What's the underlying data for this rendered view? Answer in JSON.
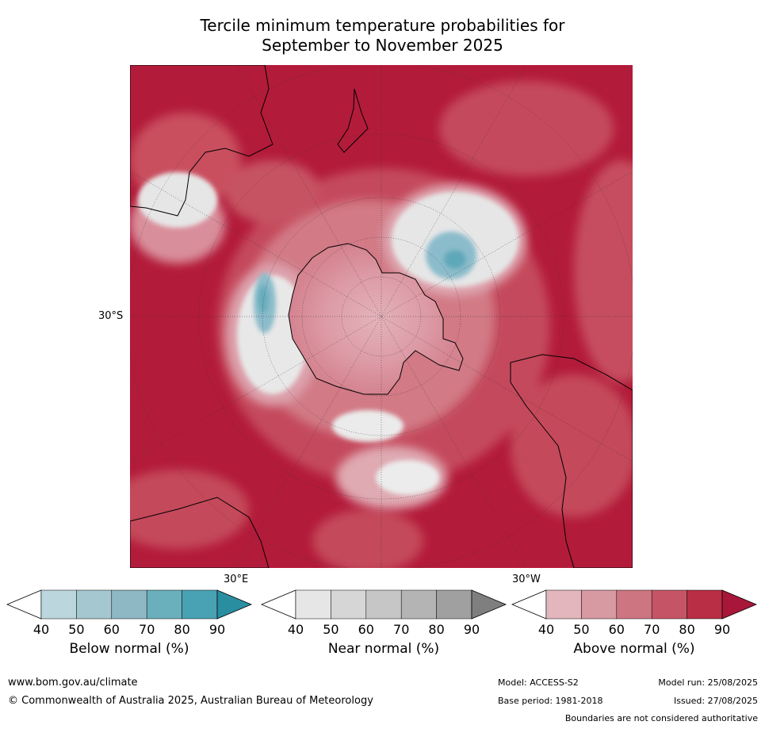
{
  "title": {
    "line1": "Tercile minimum temperature probabilities for",
    "line2": "September to November 2025"
  },
  "map": {
    "projection_labels": {
      "lat_30s": "30°S",
      "lon_30e": "30°E",
      "lon_30w": "30°W"
    },
    "colors": {
      "above_dominant": "#b31b3a",
      "above_mid": "#cf5e70",
      "above_low": "#e0a7b0",
      "near": "#e6e6e6",
      "below": "#7fb6c4",
      "coast": "#000000"
    }
  },
  "legends": [
    {
      "label": "Below normal (%)",
      "ticks": [
        "40",
        "50",
        "60",
        "70",
        "80",
        "90"
      ],
      "colors": [
        "#ffffff",
        "#bcd6de",
        "#a5c8d0",
        "#8db8c4",
        "#6aafbc",
        "#48a2b3",
        "#2a8ea1"
      ]
    },
    {
      "label": "Near normal (%)",
      "ticks": [
        "40",
        "50",
        "60",
        "70",
        "80",
        "90"
      ],
      "colors": [
        "#ffffff",
        "#e6e6e6",
        "#d6d6d6",
        "#c6c6c6",
        "#b4b4b4",
        "#a0a0a0",
        "#7f7f7f"
      ]
    },
    {
      "label": "Above normal (%)",
      "ticks": [
        "40",
        "50",
        "60",
        "70",
        "80",
        "90"
      ],
      "colors": [
        "#ffffff",
        "#e2b6bc",
        "#d799a2",
        "#cd7580",
        "#c55566",
        "#b92e45",
        "#a8173a"
      ]
    }
  ],
  "footer": {
    "url": "www.bom.gov.au/climate",
    "copyright": "© Commonwealth of Australia 2025, Australian Bureau of Meteorology",
    "model": "Model: ACCESS-S2",
    "base_period": "Base period: 1981-2018",
    "model_run": "Model run: 25/08/2025",
    "issued": "Issued: 27/08/2025",
    "disclaimer": "Boundaries are not considered authoritative"
  }
}
